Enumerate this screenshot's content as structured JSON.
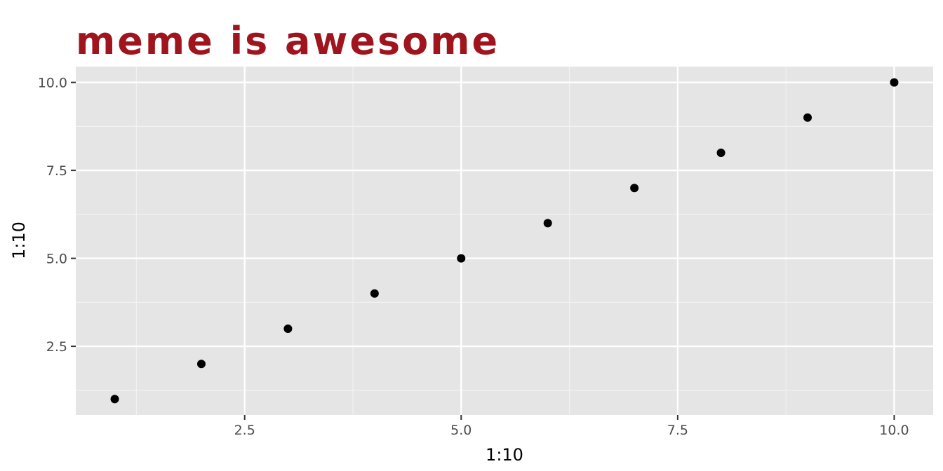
{
  "chart_data": {
    "type": "scatter",
    "title": "meme is awesome",
    "xlabel": "1:10",
    "ylabel": "1:10",
    "x": [
      1,
      2,
      3,
      4,
      5,
      6,
      7,
      8,
      9,
      10
    ],
    "y": [
      1,
      2,
      3,
      4,
      5,
      6,
      7,
      8,
      9,
      10
    ],
    "xlim": [
      0.55,
      10.45
    ],
    "ylim": [
      0.55,
      10.45
    ],
    "x_ticks": [
      2.5,
      5.0,
      7.5,
      10.0
    ],
    "x_tick_labels": [
      "2.5",
      "5.0",
      "7.5",
      "10.0"
    ],
    "y_ticks": [
      2.5,
      5.0,
      7.5,
      10.0
    ],
    "y_tick_labels": [
      "2.5",
      "5.0",
      "7.5",
      "10.0"
    ],
    "grid": true,
    "legend": "none"
  },
  "colors": {
    "panel_background": "#e5e5e5",
    "grid_major": "#ffffff",
    "grid_minor": "#f2f2f2",
    "point": "#000000",
    "title": "#a0141e",
    "tick_text": "#4d4d4d",
    "tick_mark": "#333333"
  }
}
